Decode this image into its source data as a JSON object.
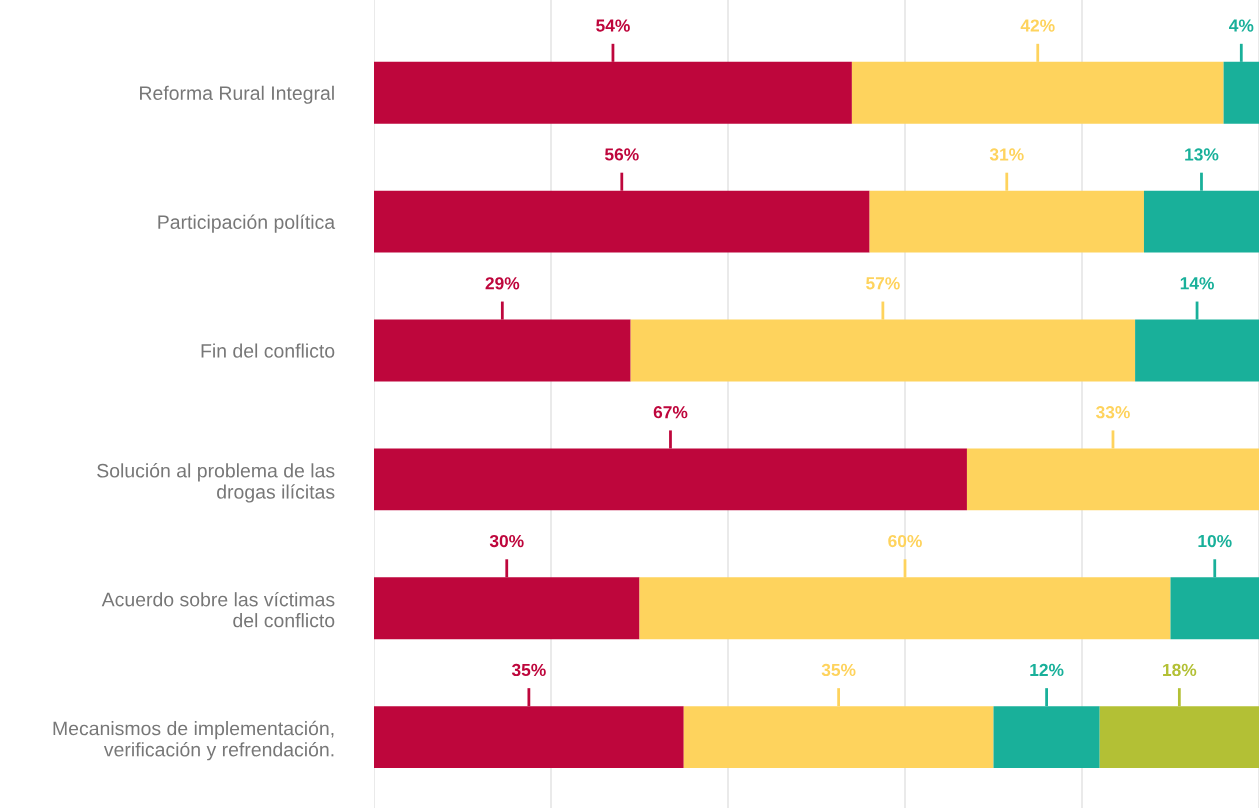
{
  "chart_data": {
    "type": "bar",
    "orientation": "horizontal",
    "stacked": true,
    "categories": [
      "Reforma Rural Integral",
      "Participación política",
      "Fin del conflicto",
      "Solución al problema de las\ndrogas ilícitas",
      "Acuerdo sobre las víctimas\ndel conflicto",
      "Mecanismos de implementación,\nverificación y refrendación."
    ],
    "series": [
      {
        "color": "#be063c",
        "values": [
          54,
          56,
          29,
          67,
          30,
          35
        ],
        "value_labels": [
          "54%",
          "56%",
          "29%",
          "67%",
          "30%",
          "35%"
        ]
      },
      {
        "color": "#fed35d",
        "values": [
          42,
          31,
          57,
          33,
          60,
          35
        ],
        "value_labels": [
          "42%",
          "31%",
          "57%",
          "33%",
          "60%",
          "35%"
        ]
      },
      {
        "color": "#19b09a",
        "values": [
          4,
          13,
          14,
          null,
          10,
          12
        ],
        "value_labels": [
          "4%",
          "13%",
          "14%",
          null,
          "10%",
          "12%"
        ]
      },
      {
        "color": "#b3c035",
        "values": [
          null,
          null,
          null,
          null,
          null,
          18
        ],
        "value_labels": [
          null,
          null,
          null,
          null,
          null,
          "18%"
        ]
      }
    ],
    "xlim": [
      0,
      100
    ],
    "xticks": [
      {
        "value": 0,
        "label": null
      },
      {
        "value": 20,
        "label": null
      },
      {
        "value": 40,
        "label": null
      },
      {
        "value": 60,
        "label": null
      },
      {
        "value": 80,
        "label": null
      },
      {
        "value": 100,
        "label": null
      }
    ],
    "grid": "x",
    "legend": false,
    "tick_labels": "y"
  }
}
